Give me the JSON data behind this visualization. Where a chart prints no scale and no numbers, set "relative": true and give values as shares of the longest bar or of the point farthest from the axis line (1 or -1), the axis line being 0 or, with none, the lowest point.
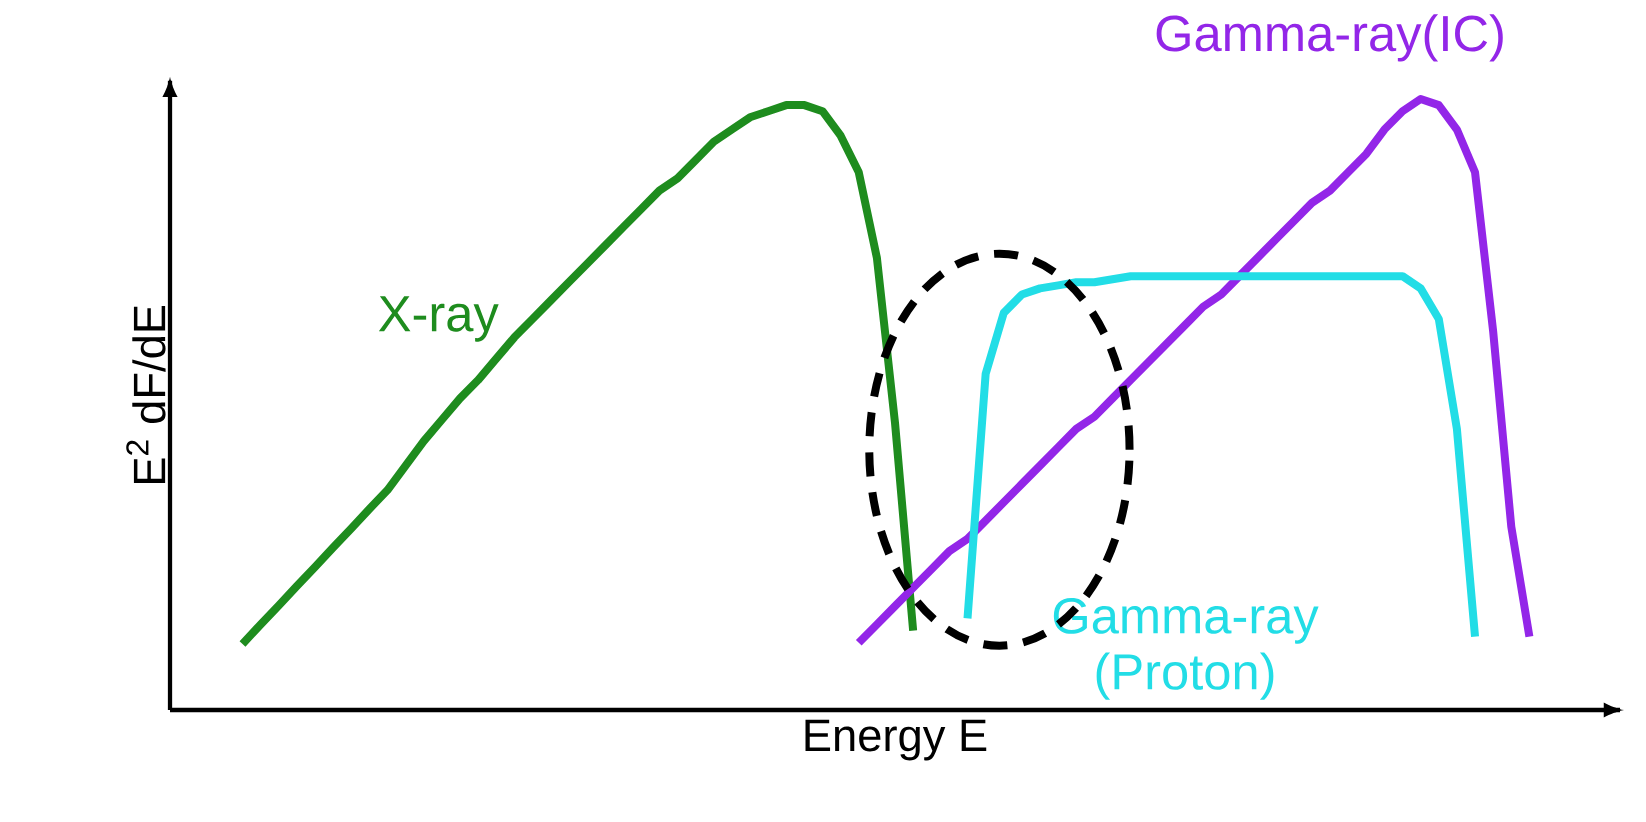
{
  "chart_data": {
    "type": "line",
    "relative": true,
    "xlabel": "Energy E",
    "ylabel": "E$^{2}$ dF/dE",
    "marker": "none",
    "line_style": "solid",
    "categories": [
      null,
      null,
      null,
      null,
      null,
      null,
      null,
      null,
      null,
      null,
      null,
      null,
      null,
      null,
      null,
      null,
      null,
      null,
      null,
      null,
      null,
      null,
      null,
      null,
      null,
      null,
      null,
      null,
      null,
      null,
      null,
      null,
      null,
      null,
      null,
      null,
      null,
      null,
      null,
      null,
      null,
      null,
      null,
      null,
      null,
      null,
      null,
      null,
      null,
      null,
      null,
      null,
      null,
      null,
      null,
      null,
      null,
      null,
      null,
      null,
      null,
      null,
      null,
      null,
      null,
      null,
      null,
      null,
      null,
      null,
      null,
      null,
      null,
      null,
      null,
      null,
      null,
      null,
      null,
      null,
      null
    ],
    "series": [
      {
        "name": "X-ray",
        "color": "#1e8c1e",
        "values": [
          null,
          null,
          null,
          null,
          0.108,
          0.14,
          0.171,
          0.203,
          0.234,
          0.266,
          0.297,
          0.329,
          0.36,
          0.4,
          0.44,
          0.475,
          0.51,
          0.54,
          0.575,
          0.61,
          0.64,
          0.67,
          0.7,
          0.73,
          0.76,
          0.79,
          0.82,
          0.85,
          0.87,
          0.9,
          0.93,
          0.95,
          0.97,
          0.98,
          0.99,
          0.99,
          0.98,
          0.94,
          0.88,
          0.74,
          0.47,
          0.13,
          null,
          null,
          null,
          null,
          null,
          null,
          null,
          null,
          null,
          null,
          null,
          null,
          null,
          null,
          null,
          null,
          null,
          null,
          null,
          null,
          null,
          null,
          null,
          null,
          null,
          null,
          null,
          null,
          null,
          null,
          null,
          null,
          null,
          null,
          null,
          null,
          null,
          null,
          null
        ]
      },
      {
        "name": "Gamma-ray(IC)",
        "color": "#9326e8",
        "values": [
          null,
          null,
          null,
          null,
          null,
          null,
          null,
          null,
          null,
          null,
          null,
          null,
          null,
          null,
          null,
          null,
          null,
          null,
          null,
          null,
          null,
          null,
          null,
          null,
          null,
          null,
          null,
          null,
          null,
          null,
          null,
          null,
          null,
          null,
          null,
          null,
          null,
          null,
          0.11,
          0.14,
          0.17,
          0.2,
          0.23,
          0.26,
          0.28,
          0.31,
          0.34,
          0.37,
          0.4,
          0.43,
          0.46,
          0.48,
          0.51,
          0.54,
          0.57,
          0.6,
          0.63,
          0.66,
          0.68,
          0.71,
          0.74,
          0.77,
          0.8,
          0.83,
          0.85,
          0.88,
          0.91,
          0.95,
          0.98,
          1.0,
          0.99,
          0.95,
          0.88,
          0.62,
          0.3,
          0.12,
          null,
          null,
          null,
          null,
          null
        ]
      },
      {
        "name": "Gamma-ray (Proton)",
        "color": "#22dde6",
        "values": [
          null,
          null,
          null,
          null,
          null,
          null,
          null,
          null,
          null,
          null,
          null,
          null,
          null,
          null,
          null,
          null,
          null,
          null,
          null,
          null,
          null,
          null,
          null,
          null,
          null,
          null,
          null,
          null,
          null,
          null,
          null,
          null,
          null,
          null,
          null,
          null,
          null,
          null,
          null,
          null,
          null,
          null,
          null,
          null,
          0.15,
          0.55,
          0.65,
          0.68,
          0.69,
          0.695,
          0.7,
          0.7,
          0.705,
          0.71,
          0.71,
          0.71,
          0.71,
          0.71,
          0.71,
          0.71,
          0.71,
          0.71,
          0.71,
          0.71,
          0.71,
          0.71,
          0.71,
          0.71,
          0.71,
          0.69,
          0.64,
          0.46,
          0.12,
          null,
          null,
          null,
          null,
          null,
          null,
          null,
          null
        ]
      }
    ]
  }
}
